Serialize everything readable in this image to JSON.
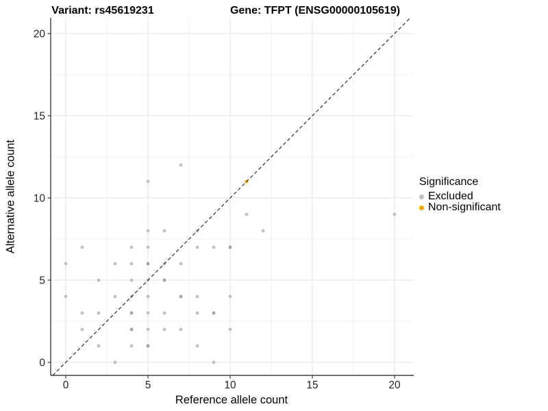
{
  "titles": {
    "variant": "Variant: rs45619231",
    "gene": "Gene: TFPT (ENSG00000105619)"
  },
  "legend": {
    "title": "Significance",
    "items": [
      {
        "label": "Excluded",
        "color": "#bfbfbf"
      },
      {
        "label": "Non-significant",
        "color": "#FFA500"
      }
    ]
  },
  "chart_data": {
    "type": "scatter",
    "title": "Variant: rs45619231    Gene: TFPT (ENSG00000105619)",
    "xlabel": "Reference allele count",
    "ylabel": "Alternative allele count",
    "xlim": [
      -0.92,
      21.1
    ],
    "ylim": [
      -0.8,
      21.0
    ],
    "x_ticks": [
      0,
      5,
      10,
      15,
      20
    ],
    "y_ticks": [
      0,
      5,
      10,
      15,
      20
    ],
    "x_minor_gridlines": [
      2.5,
      7.5,
      12.5,
      17.5
    ],
    "y_minor_gridlines": [
      2.5,
      7.5,
      12.5,
      17.5
    ],
    "grid": "on",
    "legend_position": "right",
    "legend_title": "Significance",
    "reference_line": {
      "type": "identity",
      "style": "dashed",
      "color": "#1c1c1c"
    },
    "series": [
      {
        "name": "Excluded",
        "color": "#969696",
        "alpha": 0.55,
        "points": [
          [
            7,
            12
          ],
          [
            5,
            11
          ],
          [
            11,
            9
          ],
          [
            20,
            9
          ],
          [
            5,
            8
          ],
          [
            6,
            8
          ],
          [
            8,
            8
          ],
          [
            12,
            8
          ],
          [
            1,
            7
          ],
          [
            4,
            7
          ],
          [
            5,
            7
          ],
          [
            8,
            7
          ],
          [
            9,
            7
          ],
          [
            10,
            7,
            2
          ],
          [
            0,
            6
          ],
          [
            3,
            6
          ],
          [
            4,
            6
          ],
          [
            5,
            6,
            2
          ],
          [
            6,
            6
          ],
          [
            7,
            6
          ],
          [
            2,
            5
          ],
          [
            4,
            5
          ],
          [
            5,
            5
          ],
          [
            6,
            5,
            2
          ],
          [
            0,
            4
          ],
          [
            3,
            4
          ],
          [
            4,
            4
          ],
          [
            5,
            4
          ],
          [
            7,
            4,
            2
          ],
          [
            8,
            4
          ],
          [
            10,
            4
          ],
          [
            1,
            3
          ],
          [
            2,
            3
          ],
          [
            4,
            3,
            2
          ],
          [
            5,
            3
          ],
          [
            6,
            3
          ],
          [
            8,
            3
          ],
          [
            9,
            3,
            2
          ],
          [
            1,
            2
          ],
          [
            4,
            2,
            2
          ],
          [
            5,
            2
          ],
          [
            6,
            2
          ],
          [
            7,
            2
          ],
          [
            10,
            2
          ],
          [
            2,
            1
          ],
          [
            4,
            1
          ],
          [
            5,
            1,
            2
          ],
          [
            8,
            1
          ],
          [
            3,
            0
          ],
          [
            9,
            0
          ]
        ]
      },
      {
        "name": "Non-significant",
        "color": "#FFA500",
        "alpha": 1,
        "points": [
          [
            11,
            11
          ]
        ]
      }
    ]
  }
}
